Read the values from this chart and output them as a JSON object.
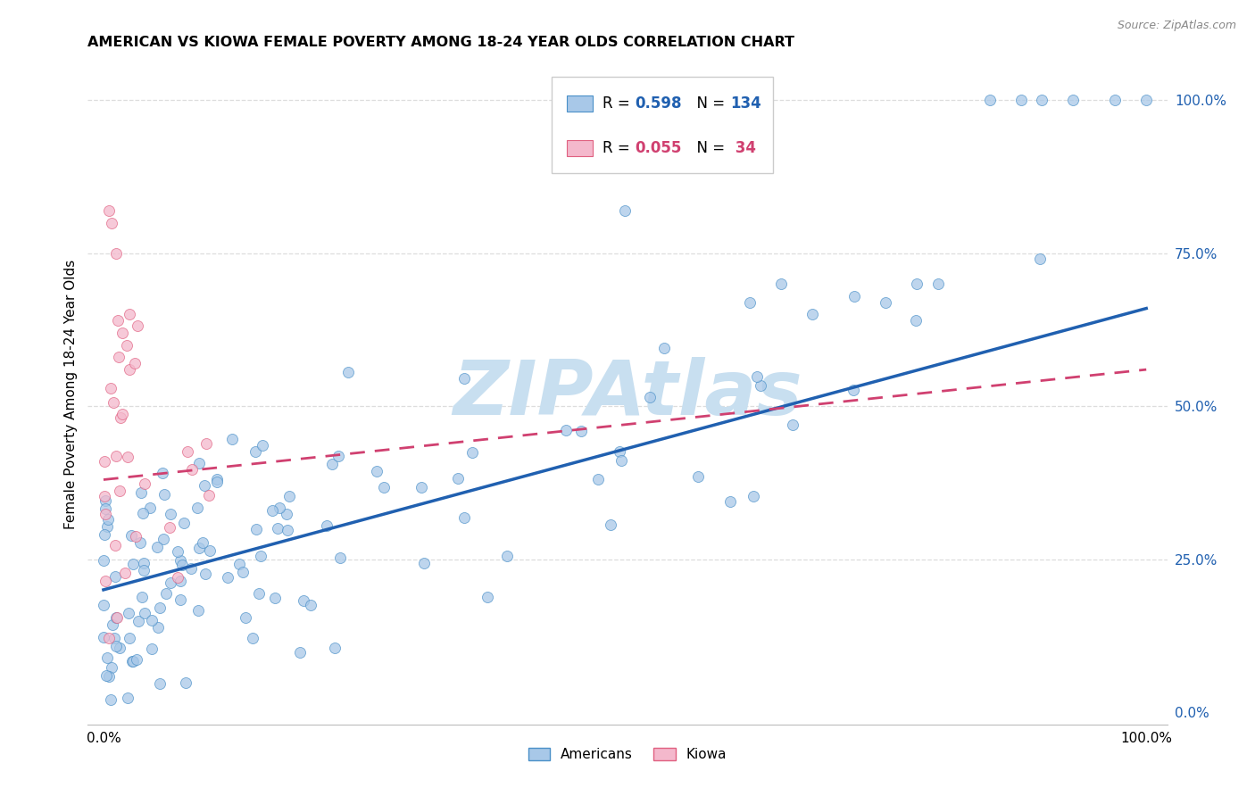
{
  "title": "AMERICAN VS KIOWA FEMALE POVERTY AMONG 18-24 YEAR OLDS CORRELATION CHART",
  "source": "Source: ZipAtlas.com",
  "ylabel": "Female Poverty Among 18-24 Year Olds",
  "legend_blue_R": "0.598",
  "legend_blue_N": "134",
  "legend_pink_R": "0.055",
  "legend_pink_N": " 34",
  "color_blue_fill": "#a8c8e8",
  "color_blue_edge": "#4a90c8",
  "color_blue_line": "#2060b0",
  "color_pink_fill": "#f4b8cc",
  "color_pink_edge": "#e06080",
  "color_pink_line": "#d04070",
  "watermark_text": "ZIPAtlas",
  "watermark_color": "#c8dff0",
  "grid_color": "#dddddd",
  "title_fontsize": 11.5,
  "axis_label_fontsize": 11,
  "legend_fontsize": 12,
  "note_blue_R_color": "#2060b0",
  "note_pink_R_color": "#d04070"
}
